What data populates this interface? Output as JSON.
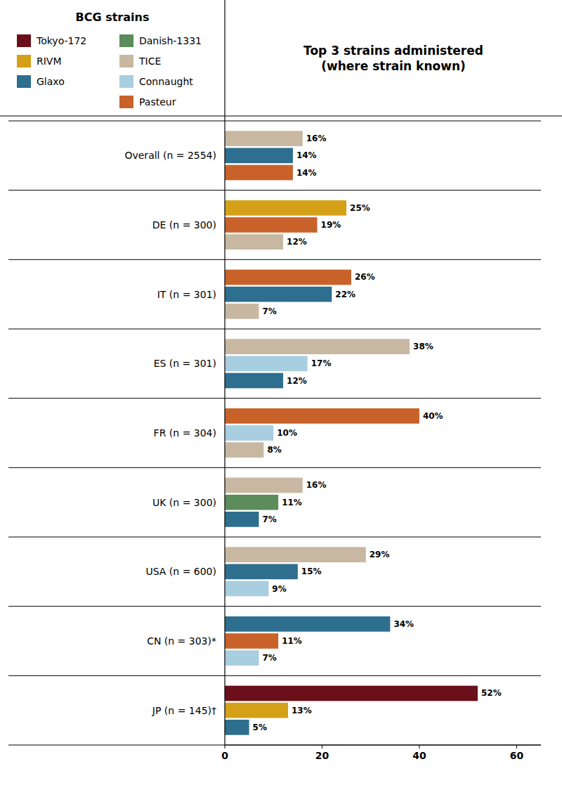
{
  "chart_data": {
    "type": "bar",
    "orientation": "horizontal",
    "title": "Top 3 strains administered\n(where strain known)",
    "legend_title": "BCG strains",
    "legend": "top",
    "data_labels": true,
    "grid": false,
    "categories": [
      "Overall (n = 2554)",
      "DE (n = 300)",
      "IT (n = 301)",
      "ES (n = 301)",
      "FR (n = 304)",
      "UK (n = 300)",
      "USA (n = 600)",
      "CN (n = 303)*",
      "JP (n = 145)†"
    ],
    "series": [
      {
        "name": "Tokyo-172",
        "color": "#6B0F1A",
        "values": [
          null,
          null,
          null,
          null,
          null,
          null,
          null,
          null,
          52
        ],
        "value_labels": [
          null,
          null,
          null,
          null,
          null,
          null,
          null,
          null,
          "52%"
        ]
      },
      {
        "name": "RIVM",
        "color": "#D4A017",
        "values": [
          null,
          25,
          null,
          null,
          null,
          null,
          null,
          null,
          13
        ],
        "value_labels": [
          null,
          "25%",
          null,
          null,
          null,
          null,
          null,
          null,
          "13%"
        ]
      },
      {
        "name": "Glaxo",
        "color": "#2E6E8E",
        "values": [
          14,
          null,
          22,
          12,
          null,
          7,
          15,
          34,
          5
        ],
        "value_labels": [
          "14%",
          null,
          "22%",
          "12%",
          null,
          "7%",
          "15%",
          "34%",
          "5%"
        ]
      },
      {
        "name": "Danish-1331",
        "color": "#5B8C5A",
        "values": [
          null,
          null,
          null,
          null,
          null,
          11,
          null,
          null,
          null
        ],
        "value_labels": [
          null,
          null,
          null,
          null,
          null,
          "11%",
          null,
          null,
          null
        ]
      },
      {
        "name": "TICE",
        "color": "#C8B8A2",
        "values": [
          16,
          12,
          7,
          38,
          8,
          16,
          29,
          null,
          null
        ],
        "value_labels": [
          "16%",
          "12%",
          "7%",
          "38%",
          "8%",
          "16%",
          "29%",
          null,
          null
        ]
      },
      {
        "name": "Connaught",
        "color": "#A8CEDF",
        "values": [
          null,
          null,
          null,
          17,
          10,
          null,
          9,
          7,
          null
        ],
        "value_labels": [
          null,
          null,
          null,
          "17%",
          "10%",
          null,
          "9%",
          "7%",
          null
        ]
      },
      {
        "name": "Pasteur",
        "color": "#C8622A",
        "values": [
          14,
          19,
          26,
          null,
          40,
          null,
          null,
          11,
          null
        ],
        "value_labels": [
          "14%",
          "19%",
          "26%",
          null,
          "40%",
          null,
          null,
          "11%",
          null
        ]
      }
    ],
    "xlim": [
      0,
      65
    ],
    "xticks": [
      0,
      20,
      40,
      60
    ]
  }
}
